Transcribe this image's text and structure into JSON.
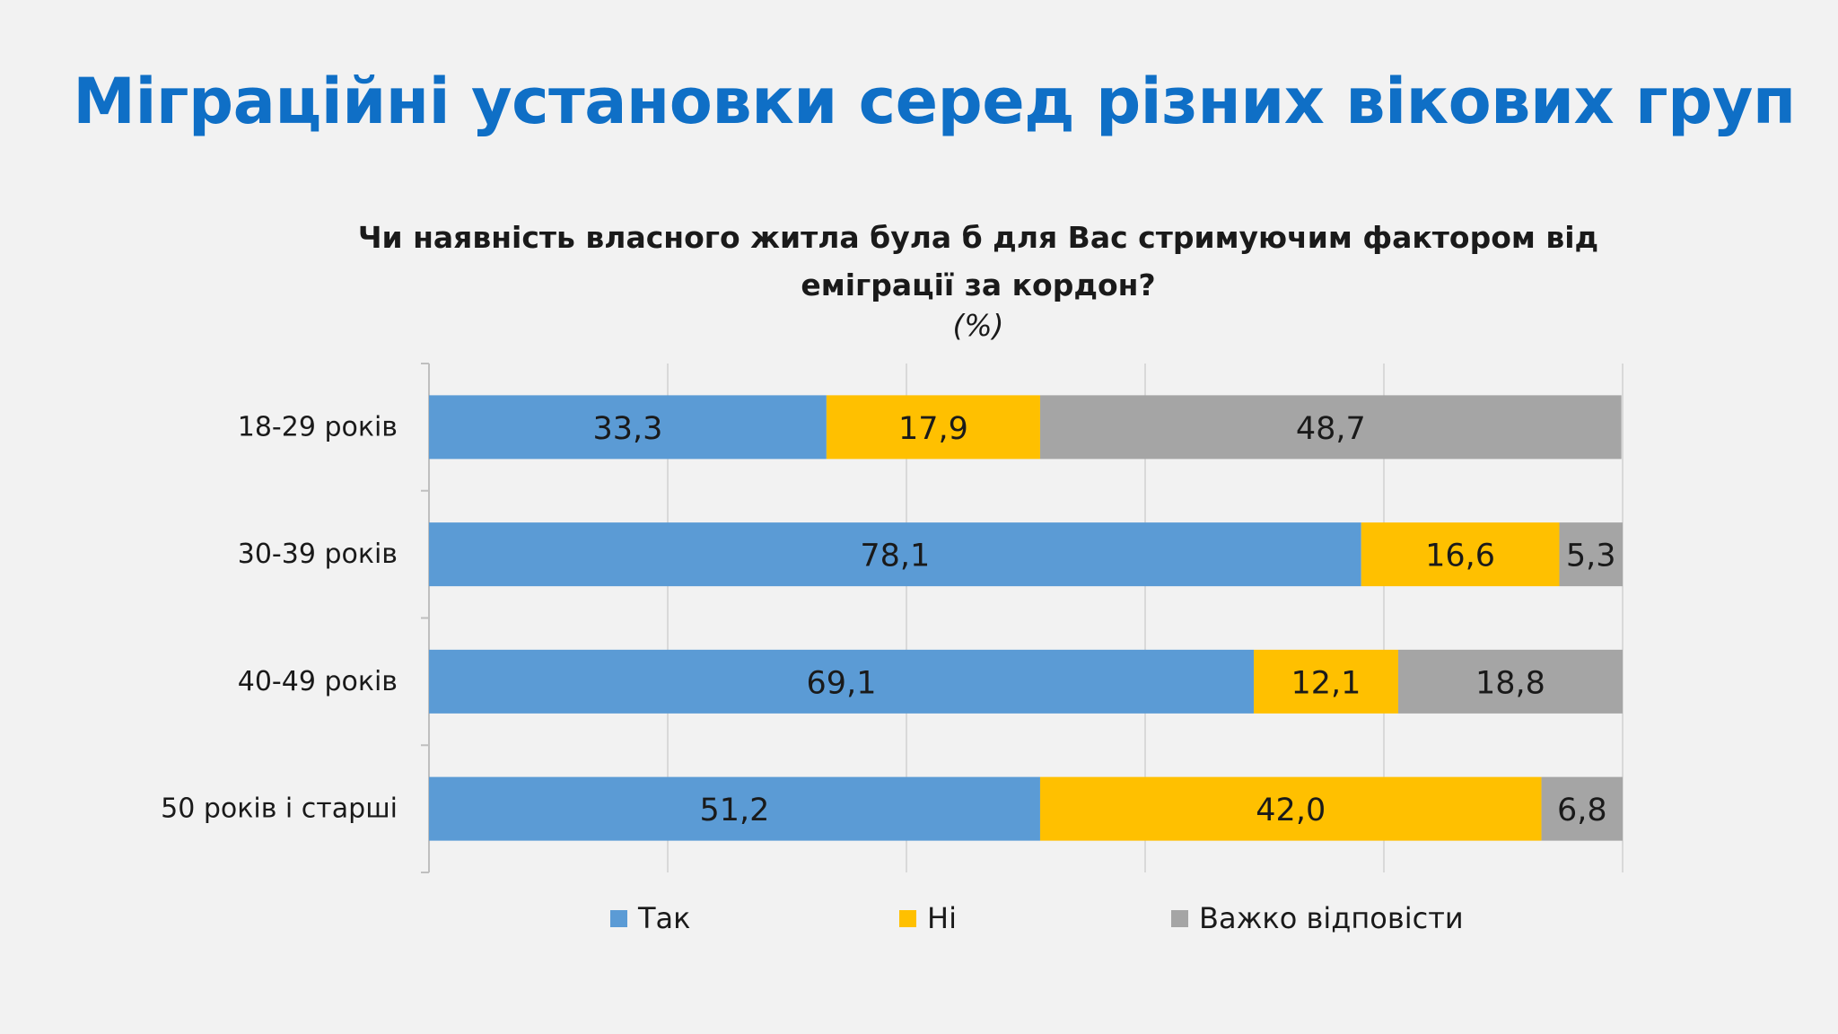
{
  "slide_title": "Міграційні установки серед різних вікових груп",
  "chart_data": {
    "type": "bar",
    "orientation": "horizontal",
    "stacked": true,
    "title": "Чи наявність власного житла була б для Вас стримуючим фактором від еміграції за кордон?",
    "subtitle": "(%)",
    "categories": [
      "18-29 років",
      "30-39 років",
      "40-49 років",
      "50 років і старші"
    ],
    "series": [
      {
        "name": "Так",
        "color": "#5b9bd5",
        "values": [
          33.3,
          78.1,
          69.1,
          51.2
        ],
        "labels": [
          "33,3",
          "78,1",
          "69,1",
          "51,2"
        ]
      },
      {
        "name": "Ні",
        "color": "#ffc000",
        "values": [
          17.9,
          16.6,
          12.1,
          42.0
        ],
        "labels": [
          "17,9",
          "16,6",
          "12,1",
          "42,0"
        ]
      },
      {
        "name": "Важко відповісти",
        "color": "#a5a5a5",
        "values": [
          48.7,
          5.3,
          18.8,
          6.8
        ],
        "labels": [
          "48,7",
          "5,3",
          "18,8",
          "6,8"
        ]
      }
    ],
    "xlim": [
      0,
      100
    ],
    "grid": true,
    "legend_position": "bottom"
  }
}
